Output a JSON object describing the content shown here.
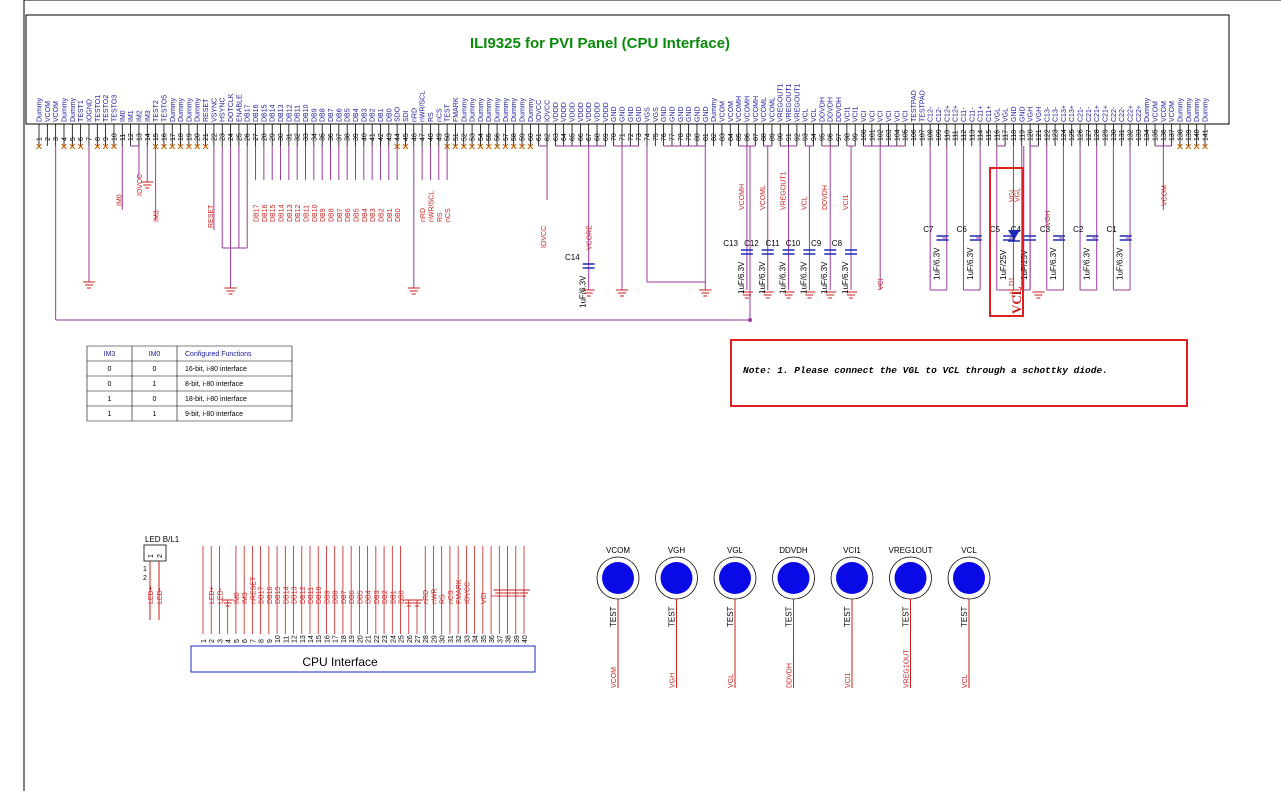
{
  "title": "ILI9325 for PVI Panel (CPU Interface)",
  "ic_pins": [
    {
      "n": "1",
      "name": "Dummy"
    },
    {
      "n": "2",
      "name": "VCOM"
    },
    {
      "n": "3",
      "name": "VCOM"
    },
    {
      "n": "4",
      "name": "Dummy"
    },
    {
      "n": "5",
      "name": "Dummy"
    },
    {
      "n": "6",
      "name": "TEST1"
    },
    {
      "n": "7",
      "name": "IOGND"
    },
    {
      "n": "8",
      "name": "TESTO1"
    },
    {
      "n": "9",
      "name": "TESTO2"
    },
    {
      "n": "10",
      "name": "TESTO3"
    },
    {
      "n": "11",
      "name": "IM0"
    },
    {
      "n": "12",
      "name": "IM1"
    },
    {
      "n": "13",
      "name": "IM2"
    },
    {
      "n": "14",
      "name": "IM3"
    },
    {
      "n": "15",
      "name": "TEST2"
    },
    {
      "n": "16",
      "name": "TESTO5"
    },
    {
      "n": "17",
      "name": "Dummy"
    },
    {
      "n": "18",
      "name": "Dummy"
    },
    {
      "n": "19",
      "name": "Dummy"
    },
    {
      "n": "20",
      "name": "Dummy"
    },
    {
      "n": "21",
      "name": "RESET"
    },
    {
      "n": "22",
      "name": "VSYNC"
    },
    {
      "n": "23",
      "name": "HSYNC"
    },
    {
      "n": "24",
      "name": "DOTCLK"
    },
    {
      "n": "25",
      "name": "ENABLE"
    },
    {
      "n": "26",
      "name": "DB17"
    },
    {
      "n": "27",
      "name": "DB16"
    },
    {
      "n": "28",
      "name": "DB15"
    },
    {
      "n": "29",
      "name": "DB14"
    },
    {
      "n": "30",
      "name": "DB13"
    },
    {
      "n": "31",
      "name": "DB12"
    },
    {
      "n": "32",
      "name": "DB11"
    },
    {
      "n": "33",
      "name": "DB10"
    },
    {
      "n": "34",
      "name": "DB9"
    },
    {
      "n": "35",
      "name": "DB8"
    },
    {
      "n": "36",
      "name": "DB7"
    },
    {
      "n": "37",
      "name": "DB6"
    },
    {
      "n": "38",
      "name": "DB5"
    },
    {
      "n": "39",
      "name": "DB4"
    },
    {
      "n": "40",
      "name": "DB3"
    },
    {
      "n": "41",
      "name": "DB2"
    },
    {
      "n": "42",
      "name": "DB1"
    },
    {
      "n": "43",
      "name": "DB0"
    },
    {
      "n": "44",
      "name": "SDO"
    },
    {
      "n": "45",
      "name": "SDI"
    },
    {
      "n": "46",
      "name": "nRD"
    },
    {
      "n": "47",
      "name": "nWR/SCL"
    },
    {
      "n": "48",
      "name": "RS"
    },
    {
      "n": "49",
      "name": "nCS"
    },
    {
      "n": "50",
      "name": "TEST"
    },
    {
      "n": "51",
      "name": "FMARK"
    },
    {
      "n": "52",
      "name": "Dummy"
    },
    {
      "n": "53",
      "name": "Dummy"
    },
    {
      "n": "54",
      "name": "Dummy"
    },
    {
      "n": "55",
      "name": "Dummy"
    },
    {
      "n": "56",
      "name": "Dummy"
    },
    {
      "n": "57",
      "name": "Dummy"
    },
    {
      "n": "58",
      "name": "Dummy"
    },
    {
      "n": "59",
      "name": "Dummy"
    },
    {
      "n": "60",
      "name": "Dummy"
    },
    {
      "n": "61",
      "name": "IOVCC"
    },
    {
      "n": "62",
      "name": "IOVCC"
    },
    {
      "n": "63",
      "name": "VDDD"
    },
    {
      "n": "64",
      "name": "VDDD"
    },
    {
      "n": "65",
      "name": "VDDD"
    },
    {
      "n": "66",
      "name": "VDDD"
    },
    {
      "n": "67",
      "name": "VDDD"
    },
    {
      "n": "68",
      "name": "VDDD"
    },
    {
      "n": "69",
      "name": "VDDD"
    },
    {
      "n": "70",
      "name": "GND"
    },
    {
      "n": "71",
      "name": "GND"
    },
    {
      "n": "72",
      "name": "GND"
    },
    {
      "n": "73",
      "name": "GND"
    },
    {
      "n": "74",
      "name": "VGS"
    },
    {
      "n": "75",
      "name": "VGS"
    },
    {
      "n": "76",
      "name": "GND"
    },
    {
      "n": "77",
      "name": "GND"
    },
    {
      "n": "78",
      "name": "GND"
    },
    {
      "n": "79",
      "name": "GND"
    },
    {
      "n": "80",
      "name": "GND"
    },
    {
      "n": "81",
      "name": "GND"
    },
    {
      "n": "82",
      "name": "Dummy"
    },
    {
      "n": "83",
      "name": "VCOM"
    },
    {
      "n": "84",
      "name": "VCOM"
    },
    {
      "n": "85",
      "name": "VCOMH"
    },
    {
      "n": "86",
      "name": "VCOMH"
    },
    {
      "n": "87",
      "name": "VCOMH"
    },
    {
      "n": "88",
      "name": "VCOML"
    },
    {
      "n": "89",
      "name": "VCOML"
    },
    {
      "n": "90",
      "name": "VREGOUT1"
    },
    {
      "n": "91",
      "name": "VREGOUT1"
    },
    {
      "n": "92",
      "name": "VREGOUT1"
    },
    {
      "n": "93",
      "name": "VCL"
    },
    {
      "n": "94",
      "name": "VCL"
    },
    {
      "n": "95",
      "name": "DDVDH"
    },
    {
      "n": "96",
      "name": "DDVDH"
    },
    {
      "n": "97",
      "name": "DDVDH"
    },
    {
      "n": "98",
      "name": "VCI1"
    },
    {
      "n": "99",
      "name": "VCI1"
    },
    {
      "n": "100",
      "name": "VCI"
    },
    {
      "n": "101",
      "name": "VCI"
    },
    {
      "n": "102",
      "name": "VCI"
    },
    {
      "n": "103",
      "name": "VCI"
    },
    {
      "n": "104",
      "name": "VCI"
    },
    {
      "n": "105",
      "name": "VCI"
    },
    {
      "n": "106",
      "name": "TESTPAD"
    },
    {
      "n": "107",
      "name": "TESTPAD"
    },
    {
      "n": "108",
      "name": "C12-"
    },
    {
      "n": "109",
      "name": "C12-"
    },
    {
      "n": "110",
      "name": "C12+"
    },
    {
      "n": "111",
      "name": "C12+"
    },
    {
      "n": "112",
      "name": "C11-"
    },
    {
      "n": "113",
      "name": "C11-"
    },
    {
      "n": "114",
      "name": "C11+"
    },
    {
      "n": "115",
      "name": "C11+"
    },
    {
      "n": "116",
      "name": "VGL"
    },
    {
      "n": "117",
      "name": "VGL"
    },
    {
      "n": "118",
      "name": "GND"
    },
    {
      "n": "119",
      "name": "GND"
    },
    {
      "n": "120",
      "name": "VGH"
    },
    {
      "n": "121",
      "name": "VGH"
    },
    {
      "n": "122",
      "name": "C13-"
    },
    {
      "n": "123",
      "name": "C13-"
    },
    {
      "n": "124",
      "name": "C13+"
    },
    {
      "n": "125",
      "name": "C13+"
    },
    {
      "n": "126",
      "name": "C21-"
    },
    {
      "n": "127",
      "name": "C21-"
    },
    {
      "n": "128",
      "name": "C21+"
    },
    {
      "n": "129",
      "name": "C21+"
    },
    {
      "n": "130",
      "name": "C22-"
    },
    {
      "n": "131",
      "name": "C22-"
    },
    {
      "n": "132",
      "name": "C22+"
    },
    {
      "n": "133",
      "name": "C22+"
    },
    {
      "n": "134",
      "name": "Dummy"
    },
    {
      "n": "135",
      "name": "VCOM"
    },
    {
      "n": "136",
      "name": "VCOM"
    },
    {
      "n": "137",
      "name": "VCOM"
    },
    {
      "n": "138",
      "name": "Dummy"
    },
    {
      "n": "139",
      "name": "Dummy"
    },
    {
      "n": "140",
      "name": "Dummy"
    },
    {
      "n": "141",
      "name": "Dummy"
    }
  ],
  "net_labels": {
    "im0": "IM0",
    "iovcc_top": "IOVCC",
    "im3": "IM3",
    "reset": "RESET",
    "db": [
      "DB17",
      "DB16",
      "DB15",
      "DB14",
      "DB13",
      "DB12",
      "DB11",
      "DB10",
      "DB9",
      "DB8",
      "DB7",
      "DB6",
      "DB5",
      "DB4",
      "DB3",
      "DB2",
      "DB1",
      "DB0"
    ],
    "ctrl": [
      "nRD",
      "nWR/SCL",
      "RS",
      "nCS"
    ],
    "iovcc": "IOVCC",
    "vcore": "VCORE",
    "vcomh": "VCOMH",
    "vcoml": "VCOML",
    "vregout1": "VREGOUT1",
    "vcl": "VCL",
    "ddvdh": "DDVDH",
    "vci1": "VCI1",
    "vci": "VCI",
    "vgl": "VGL",
    "vgh": "VGH",
    "vcom": "VCOM"
  },
  "components": [
    {
      "ref": "C14",
      "value": "1uF/6.3V"
    },
    {
      "ref": "C13",
      "value": "1uF/6.3V"
    },
    {
      "ref": "C12",
      "value": "1uF/6.3V"
    },
    {
      "ref": "C11",
      "value": "1uF/6.3V"
    },
    {
      "ref": "C10",
      "value": "1uF/6.3V"
    },
    {
      "ref": "C9",
      "value": "1uF/6.3V"
    },
    {
      "ref": "C8",
      "value": "1uF/6.3V"
    },
    {
      "ref": "C7",
      "value": "1uF/6.3V"
    },
    {
      "ref": "C6",
      "value": "1uF/6.3V"
    },
    {
      "ref": "C5",
      "value": "1uF/25V"
    },
    {
      "ref": "C4",
      "value": "1uF/25V"
    },
    {
      "ref": "C3",
      "value": "1uF/6.3V"
    },
    {
      "ref": "C2",
      "value": "1uF/6.3V"
    },
    {
      "ref": "C1",
      "value": "1uF/6.3V"
    }
  ],
  "diode": {
    "ref": "D1",
    "highlight_label": "VCL",
    "net": "VGL"
  },
  "note": "Note: 1. Please connect the VGL to VCL through a schottky diode.",
  "im_table": {
    "headers": [
      "IM3",
      "IM0",
      "Configured Functions"
    ],
    "rows": [
      [
        "0",
        "0",
        "16-bit, i-80 interface"
      ],
      [
        "0",
        "1",
        "8-bit, i-80 interface"
      ],
      [
        "1",
        "0",
        "18-bit, i-80 interface"
      ],
      [
        "1",
        "1",
        "9-bit, i-80 interface"
      ]
    ]
  },
  "led": {
    "ref": "LED B/L1",
    "pin_nums": [
      "1",
      "2"
    ],
    "nets": [
      "LED+",
      "LED-"
    ]
  },
  "cpu_connector": {
    "label": "CPU Interface",
    "pins": [
      "1",
      "2",
      "3",
      "4",
      "5",
      "6",
      "7",
      "8",
      "9",
      "10",
      "11",
      "12",
      "13",
      "14",
      "15",
      "16",
      "17",
      "18",
      "19",
      "20",
      "21",
      "22",
      "23",
      "24",
      "25",
      "26",
      "27",
      "28",
      "29",
      "30",
      "31",
      "32",
      "33",
      "34",
      "35",
      "36",
      "37",
      "38",
      "39",
      "40"
    ],
    "nets": [
      "",
      "LED+",
      "LED-",
      "",
      "IM0",
      "IM3",
      "nRESET",
      "DB17",
      "DB16",
      "DB15",
      "DB14",
      "DB13",
      "DB12",
      "DB11",
      "DB10",
      "DB9",
      "DB8",
      "DB7",
      "DB6",
      "DB5",
      "DB4",
      "DB3",
      "DB2",
      "DB1",
      "DB0",
      "",
      "",
      "nRD",
      "nWR",
      "RS",
      "nCS",
      "FMARK",
      "IOVCC",
      "",
      "VCI",
      "",
      "",
      "",
      "",
      ""
    ]
  },
  "test_points": [
    {
      "top": "VCOM",
      "pin": "TEST",
      "net": "VCOM"
    },
    {
      "top": "VGH",
      "pin": "TEST",
      "net": "VGH"
    },
    {
      "top": "VGL",
      "pin": "TEST",
      "net": "VGL"
    },
    {
      "top": "DDVDH",
      "pin": "TEST",
      "net": "DDVDH"
    },
    {
      "top": "VCI1",
      "pin": "TEST",
      "net": "VCI1"
    },
    {
      "top": "VREG1OUT",
      "pin": "TEST",
      "net": "VREG1OUT"
    },
    {
      "top": "VCL",
      "pin": "TEST",
      "net": "VCL"
    }
  ],
  "colors": {
    "wire": "#9b3a9b",
    "net": "#c81e1e",
    "pin": "#1a1a9a",
    "cap": "#1e2ab4",
    "title": "#0a8a0a",
    "tp_fill": "#0a0ae6",
    "highlight": "#e02020",
    "nc": "#c86400"
  }
}
